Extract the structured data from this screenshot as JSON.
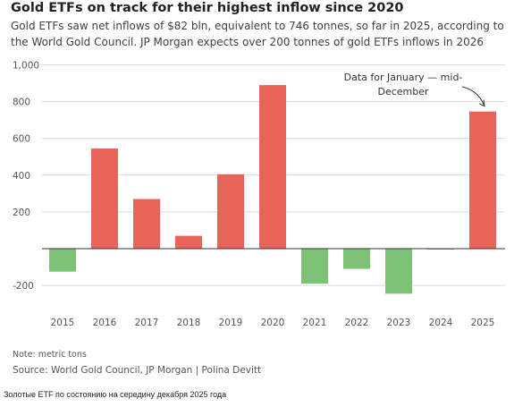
{
  "caption": "Золотые ETF по состоянию на середину декабря 2025 года",
  "chart_data": {
    "type": "bar",
    "title": "Gold ETFs on track for their highest inflow since 2020",
    "subtitle": "Gold ETFs saw net inflows of $82 bln, equivalent to 746 tonnes, so far in 2025, according to the World Gold Council. JP Morgan expects over 200 tonnes of gold ETFs inflows in 2026",
    "categories": [
      "2015",
      "2016",
      "2017",
      "2018",
      "2019",
      "2020",
      "2021",
      "2022",
      "2023",
      "2024",
      "2025"
    ],
    "values": [
      -125,
      545,
      270,
      70,
      405,
      890,
      -190,
      -110,
      -245,
      -5,
      746
    ],
    "ylim": [
      -250,
      1000
    ],
    "yticks": [
      -200,
      0,
      200,
      400,
      600,
      800,
      1000
    ],
    "ytick_labels": [
      "-200",
      "",
      "200",
      "400",
      "600",
      "800",
      "1,000"
    ],
    "grid": true,
    "positive_color": "#e8645a",
    "negative_color": "#7dc277",
    "annotation": "Data for January — mid-December",
    "note": "Note: metric tons",
    "source": "Source: World Gold Council, JP Morgan | Polina Devitt"
  }
}
